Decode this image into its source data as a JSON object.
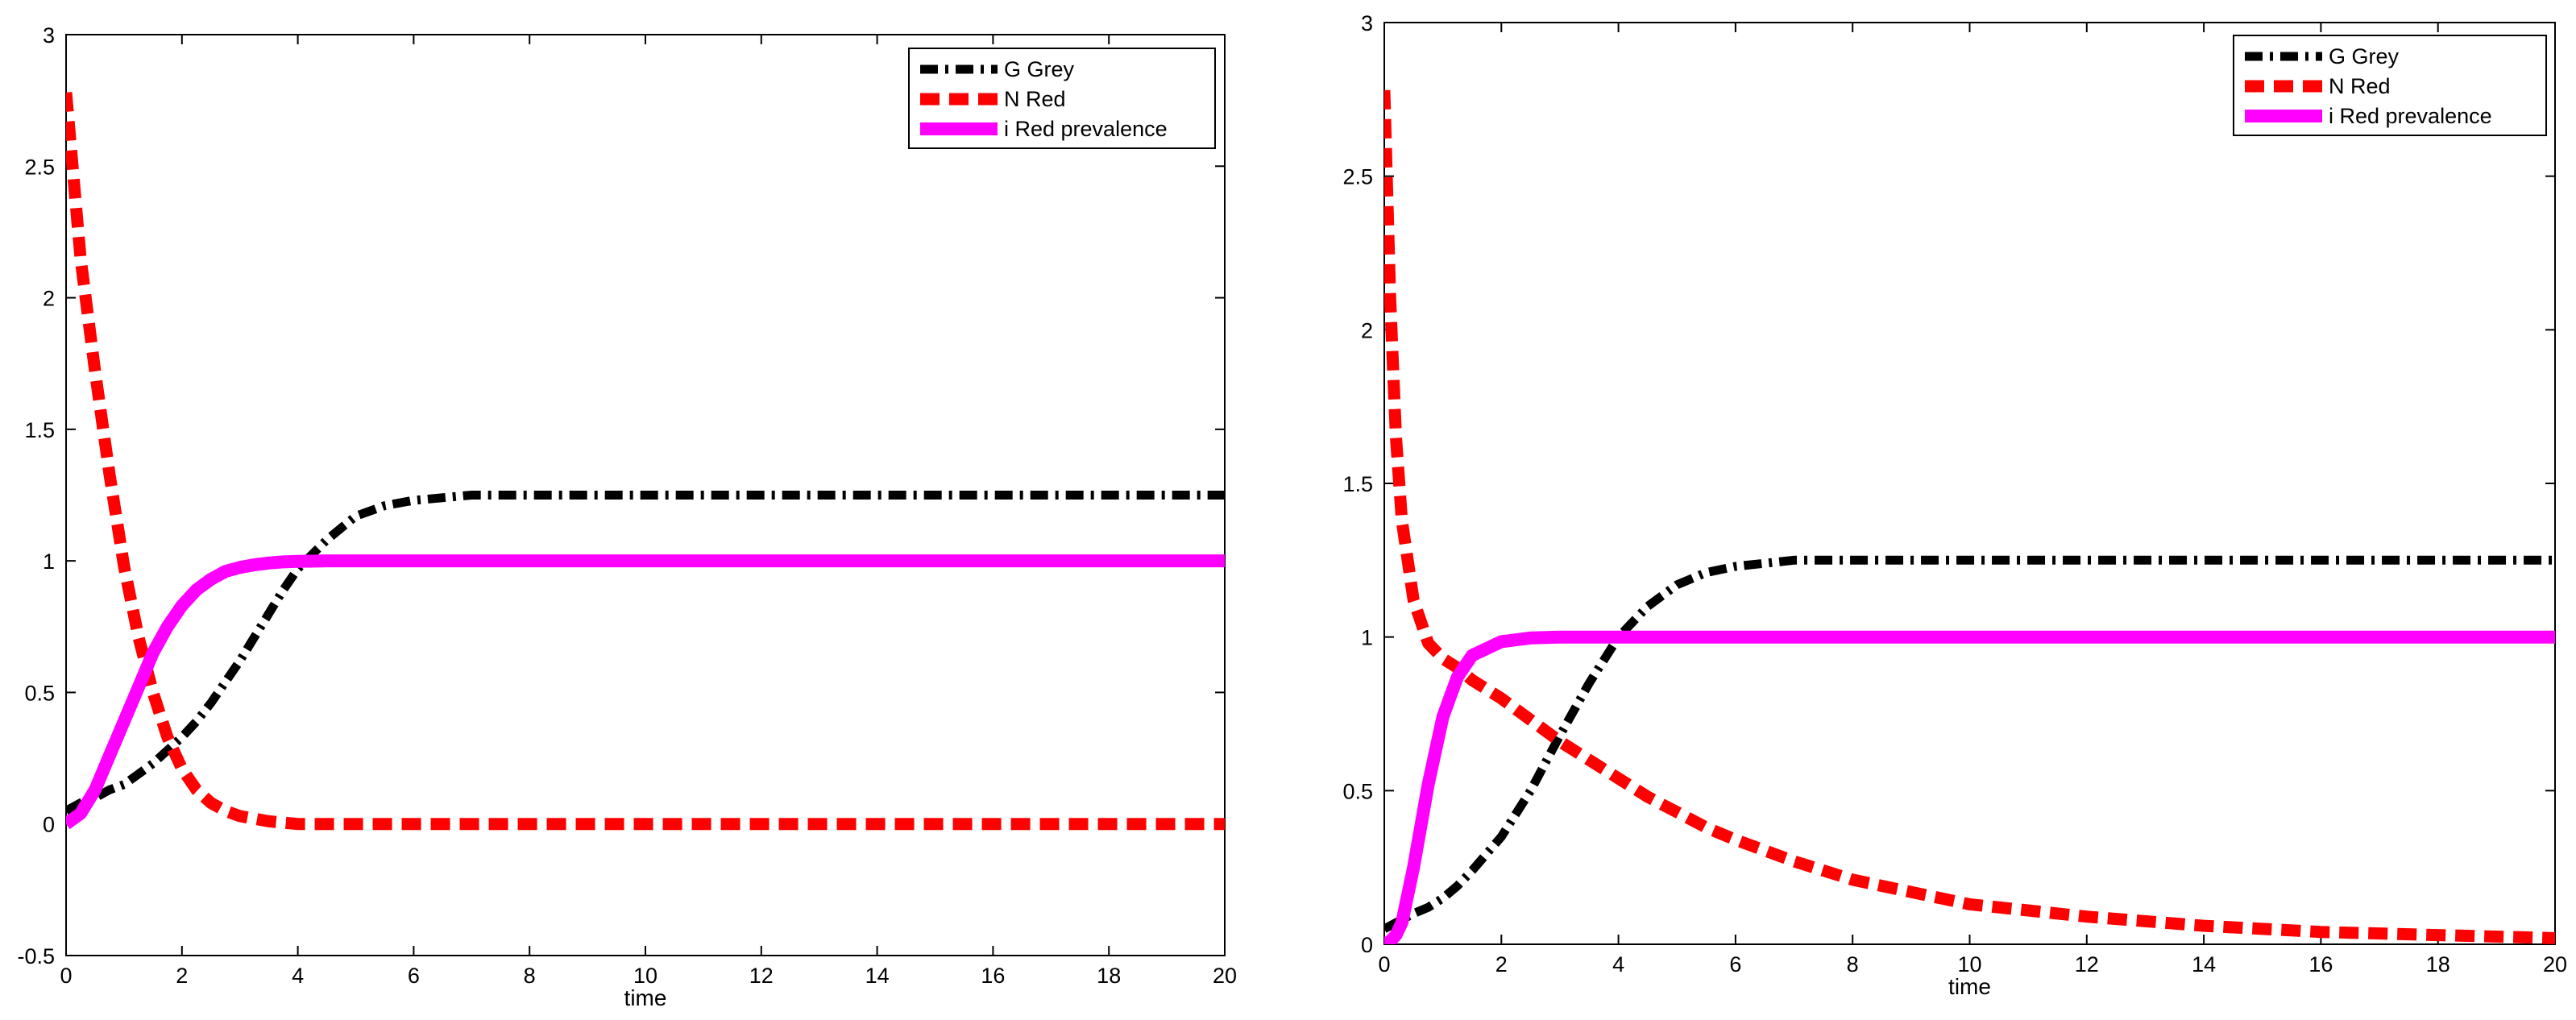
{
  "chart_data": [
    {
      "type": "line",
      "title": "",
      "xlabel": "time",
      "ylabel": "",
      "xlim": [
        0,
        20
      ],
      "ylim": [
        -0.5,
        3
      ],
      "xticks": [
        0,
        2,
        4,
        6,
        8,
        10,
        12,
        14,
        16,
        18,
        20
      ],
      "yticks": [
        -0.5,
        0,
        0.5,
        1,
        1.5,
        2,
        2.5,
        3
      ],
      "legend": "top-right",
      "x": [
        0,
        0.25,
        0.5,
        0.75,
        1,
        1.25,
        1.5,
        1.75,
        2,
        2.25,
        2.5,
        2.75,
        3,
        3.25,
        3.5,
        3.75,
        4,
        4.5,
        5,
        5.5,
        6,
        7,
        8,
        10,
        12,
        14,
        16,
        18,
        20
      ],
      "series": [
        {
          "name": "G Grey",
          "color": "#000000",
          "style": "dash-dot",
          "values": [
            0.05,
            0.08,
            0.1,
            0.13,
            0.15,
            0.19,
            0.23,
            0.28,
            0.33,
            0.39,
            0.46,
            0.54,
            0.62,
            0.71,
            0.8,
            0.89,
            0.97,
            1.08,
            1.17,
            1.21,
            1.23,
            1.25,
            1.25,
            1.25,
            1.25,
            1.25,
            1.25,
            1.25,
            1.25
          ]
        },
        {
          "name": "N Red",
          "color": "#ff0000",
          "style": "dashed",
          "values": [
            2.78,
            2.15,
            1.72,
            1.33,
            0.98,
            0.71,
            0.5,
            0.33,
            0.21,
            0.13,
            0.08,
            0.05,
            0.03,
            0.02,
            0.01,
            0.005,
            0.0,
            0.0,
            0.0,
            0.0,
            0.0,
            0.0,
            0.0,
            0.0,
            0.0,
            0.0,
            0.0,
            0.0,
            0.0
          ]
        },
        {
          "name": "i Red prevalence",
          "color": "#ff00ff",
          "style": "solid",
          "values": [
            0.0,
            0.04,
            0.13,
            0.26,
            0.39,
            0.52,
            0.65,
            0.75,
            0.83,
            0.89,
            0.93,
            0.96,
            0.975,
            0.985,
            0.992,
            0.996,
            0.998,
            1.0,
            1.0,
            1.0,
            1.0,
            1.0,
            1.0,
            1.0,
            1.0,
            1.0,
            1.0,
            1.0,
            1.0
          ]
        }
      ]
    },
    {
      "type": "line",
      "title": "",
      "xlabel": "time",
      "ylabel": "",
      "xlim": [
        0,
        20
      ],
      "ylim": [
        0,
        3
      ],
      "xticks": [
        0,
        2,
        4,
        6,
        8,
        10,
        12,
        14,
        16,
        18,
        20
      ],
      "yticks": [
        0,
        0.5,
        1,
        1.5,
        2,
        2.5,
        3
      ],
      "legend": "top-right",
      "x": [
        0,
        0.1,
        0.2,
        0.3,
        0.5,
        0.75,
        1,
        1.25,
        1.5,
        2,
        2.5,
        3,
        3.5,
        4,
        4.5,
        5,
        5.5,
        6,
        7,
        8,
        10,
        12,
        14,
        16,
        18,
        20
      ],
      "series": [
        {
          "name": "G Grey",
          "color": "#000000",
          "style": "dash-dot",
          "values": [
            0.05,
            0.06,
            0.07,
            0.08,
            0.1,
            0.12,
            0.15,
            0.19,
            0.24,
            0.35,
            0.5,
            0.68,
            0.85,
            1.0,
            1.1,
            1.17,
            1.21,
            1.23,
            1.25,
            1.25,
            1.25,
            1.25,
            1.25,
            1.25,
            1.25,
            1.25
          ]
        },
        {
          "name": "N Red",
          "color": "#ff0000",
          "style": "dashed",
          "values": [
            2.78,
            2.1,
            1.65,
            1.38,
            1.12,
            0.98,
            0.93,
            0.9,
            0.86,
            0.8,
            0.73,
            0.66,
            0.6,
            0.54,
            0.48,
            0.43,
            0.38,
            0.34,
            0.27,
            0.21,
            0.13,
            0.09,
            0.06,
            0.04,
            0.03,
            0.02
          ]
        },
        {
          "name": "i Red prevalence",
          "color": "#ff00ff",
          "style": "solid",
          "values": [
            0.0,
            0.01,
            0.03,
            0.07,
            0.25,
            0.52,
            0.74,
            0.87,
            0.94,
            0.985,
            0.997,
            1.0,
            1.0,
            1.0,
            1.0,
            1.0,
            1.0,
            1.0,
            1.0,
            1.0,
            1.0,
            1.0,
            1.0,
            1.0,
            1.0,
            1.0
          ]
        }
      ]
    }
  ]
}
